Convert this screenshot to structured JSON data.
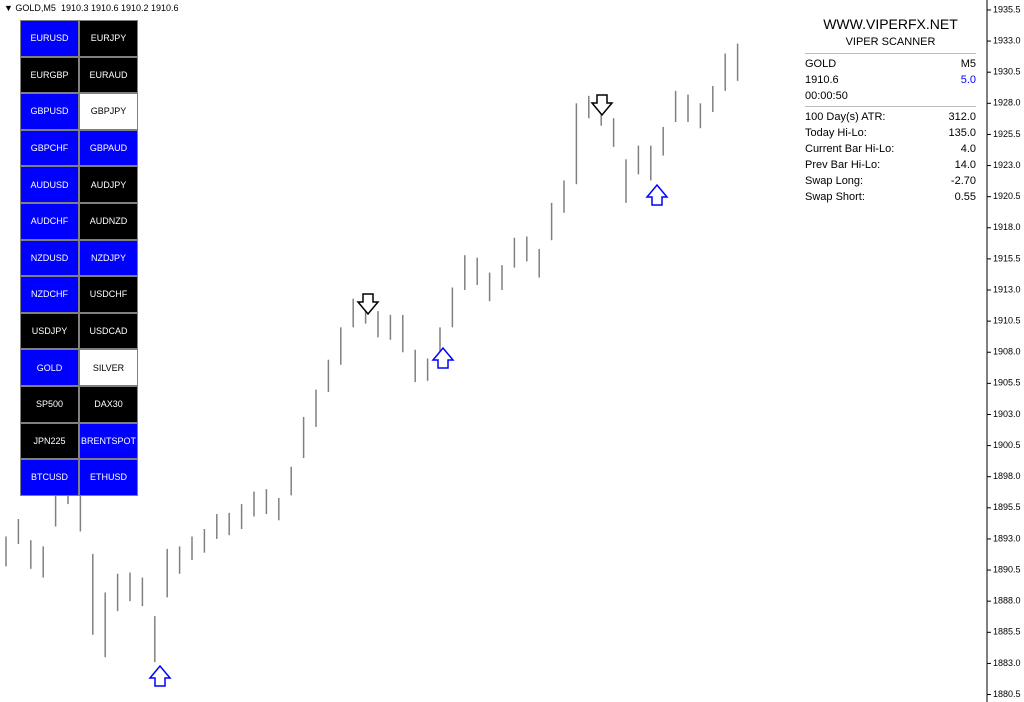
{
  "header": {
    "symbol": "GOLD,M5",
    "ohlc": "1910.3 1910.6 1910.2 1910.6"
  },
  "symbol_buttons": [
    {
      "label": "EURUSD",
      "color": "#0000ff"
    },
    {
      "label": "EURJPY",
      "color": "#000000"
    },
    {
      "label": "EURGBP",
      "color": "#000000"
    },
    {
      "label": "EURAUD",
      "color": "#000000"
    },
    {
      "label": "GBPUSD",
      "color": "#0000ff"
    },
    {
      "label": "GBPJPY",
      "color": "#ffffff"
    },
    {
      "label": "GBPCHF",
      "color": "#0000ff"
    },
    {
      "label": "GBPAUD",
      "color": "#0000ff"
    },
    {
      "label": "AUDUSD",
      "color": "#0000ff"
    },
    {
      "label": "AUDJPY",
      "color": "#000000"
    },
    {
      "label": "AUDCHF",
      "color": "#0000ff"
    },
    {
      "label": "AUDNZD",
      "color": "#000000"
    },
    {
      "label": "NZDUSD",
      "color": "#0000ff"
    },
    {
      "label": "NZDJPY",
      "color": "#0000ff"
    },
    {
      "label": "NZDCHF",
      "color": "#0000ff"
    },
    {
      "label": "USDCHF",
      "color": "#000000"
    },
    {
      "label": "USDJPY",
      "color": "#000000"
    },
    {
      "label": "USDCAD",
      "color": "#000000"
    },
    {
      "label": "GOLD",
      "color": "#0000ff"
    },
    {
      "label": "SILVER",
      "color": "#ffffff"
    },
    {
      "label": "SP500",
      "color": "#000000"
    },
    {
      "label": "DAX30",
      "color": "#000000"
    },
    {
      "label": "JPN225",
      "color": "#000000"
    },
    {
      "label": "BRENTSPOT",
      "color": "#0000ff"
    },
    {
      "label": "BTCUSD",
      "color": "#0000ff"
    },
    {
      "label": "ETHUSD",
      "color": "#0000ff"
    }
  ],
  "info_panel": {
    "site": "WWW.VIPERFX.NET",
    "title": "VIPER SCANNER",
    "symbol": "GOLD",
    "timeframe": "M5",
    "price": "1910.6",
    "spread": "5.0",
    "timer": "00:00:50",
    "rows": [
      {
        "label": "100 Day(s) ATR:",
        "value": "312.0"
      },
      {
        "label": "Today Hi-Lo:",
        "value": "135.0"
      },
      {
        "label": "Current Bar Hi-Lo:",
        "value": "4.0"
      },
      {
        "label": "Prev Bar Hi-Lo:",
        "value": "14.0"
      },
      {
        "label": "Swap Long:",
        "value": "-2.70"
      },
      {
        "label": "Swap Short:",
        "value": "0.55"
      }
    ]
  },
  "chart_data": {
    "type": "ohlc-bars",
    "color": "#808080",
    "ylim": [
      1879.9,
      1936.3
    ],
    "yticks": [
      1880.5,
      {
        "value": 1883,
        "label": "1883.0"
      },
      1885.5,
      {
        "value": 1888,
        "label": "1888.0"
      },
      1890.5,
      {
        "value": 1893,
        "label": "1893.0"
      },
      1895.5,
      {
        "value": 1898,
        "label": "1898.0"
      },
      1900.5,
      {
        "value": 1903,
        "label": "1903.0"
      },
      1905.5,
      {
        "value": 1908,
        "label": "1908.0"
      },
      1910.5,
      {
        "value": 1913,
        "label": "1913.0"
      },
      1915.5,
      {
        "value": 1918,
        "label": "1918.0"
      },
      1920.5,
      {
        "value": 1923,
        "label": "1923.0"
      },
      1925.5,
      {
        "value": 1928,
        "label": "1928.0"
      },
      1930.5,
      {
        "value": 1933,
        "label": "1933.0"
      },
      1935.5
    ],
    "high": [
      1893.2,
      1894.6,
      1892.9,
      1892.4,
      1898.5,
      1899.0,
      1898.3,
      1891.8,
      1888.7,
      1890.2,
      1890.3,
      1889.9,
      1886.8,
      1892.2,
      1892.4,
      1893.2,
      1893.8,
      1895.0,
      1895.1,
      1895.8,
      1896.8,
      1897.0,
      1896.3,
      1898.8,
      1902.8,
      1905.0,
      1907.4,
      1910.0,
      1912.3,
      1912.6,
      1911.3,
      1911.0,
      1911.0,
      1908.2,
      1907.5,
      1910.0,
      1913.2,
      1915.8,
      1915.6,
      1914.4,
      1915.0,
      1917.2,
      1917.3,
      1916.3,
      1920.0,
      1921.8,
      1928.0,
      1928.6,
      1928.3,
      1926.8,
      1923.5,
      1924.6,
      1924.6,
      1926.1,
      1929.0,
      1928.7,
      1928.0,
      1929.4,
      1932.0,
      1932.8
    ],
    "low": [
      1890.8,
      1892.6,
      1890.6,
      1889.9,
      1894.0,
      1895.8,
      1893.6,
      1885.3,
      1883.5,
      1887.2,
      1888.0,
      1887.6,
      1883.1,
      1888.3,
      1890.2,
      1891.3,
      1891.9,
      1893.0,
      1893.3,
      1893.8,
      1894.8,
      1895.0,
      1894.5,
      1896.5,
      1899.5,
      1902.0,
      1904.8,
      1907.0,
      1910.0,
      1910.3,
      1909.2,
      1909.0,
      1908.0,
      1905.6,
      1905.7,
      1907.4,
      1910.0,
      1913.0,
      1913.4,
      1912.1,
      1913.0,
      1914.8,
      1915.3,
      1914.0,
      1917.0,
      1919.2,
      1921.5,
      1926.8,
      1926.2,
      1924.5,
      1920.0,
      1922.3,
      1921.8,
      1923.8,
      1926.5,
      1926.5,
      1926.0,
      1927.3,
      1929.0,
      1929.8
    ]
  }
}
